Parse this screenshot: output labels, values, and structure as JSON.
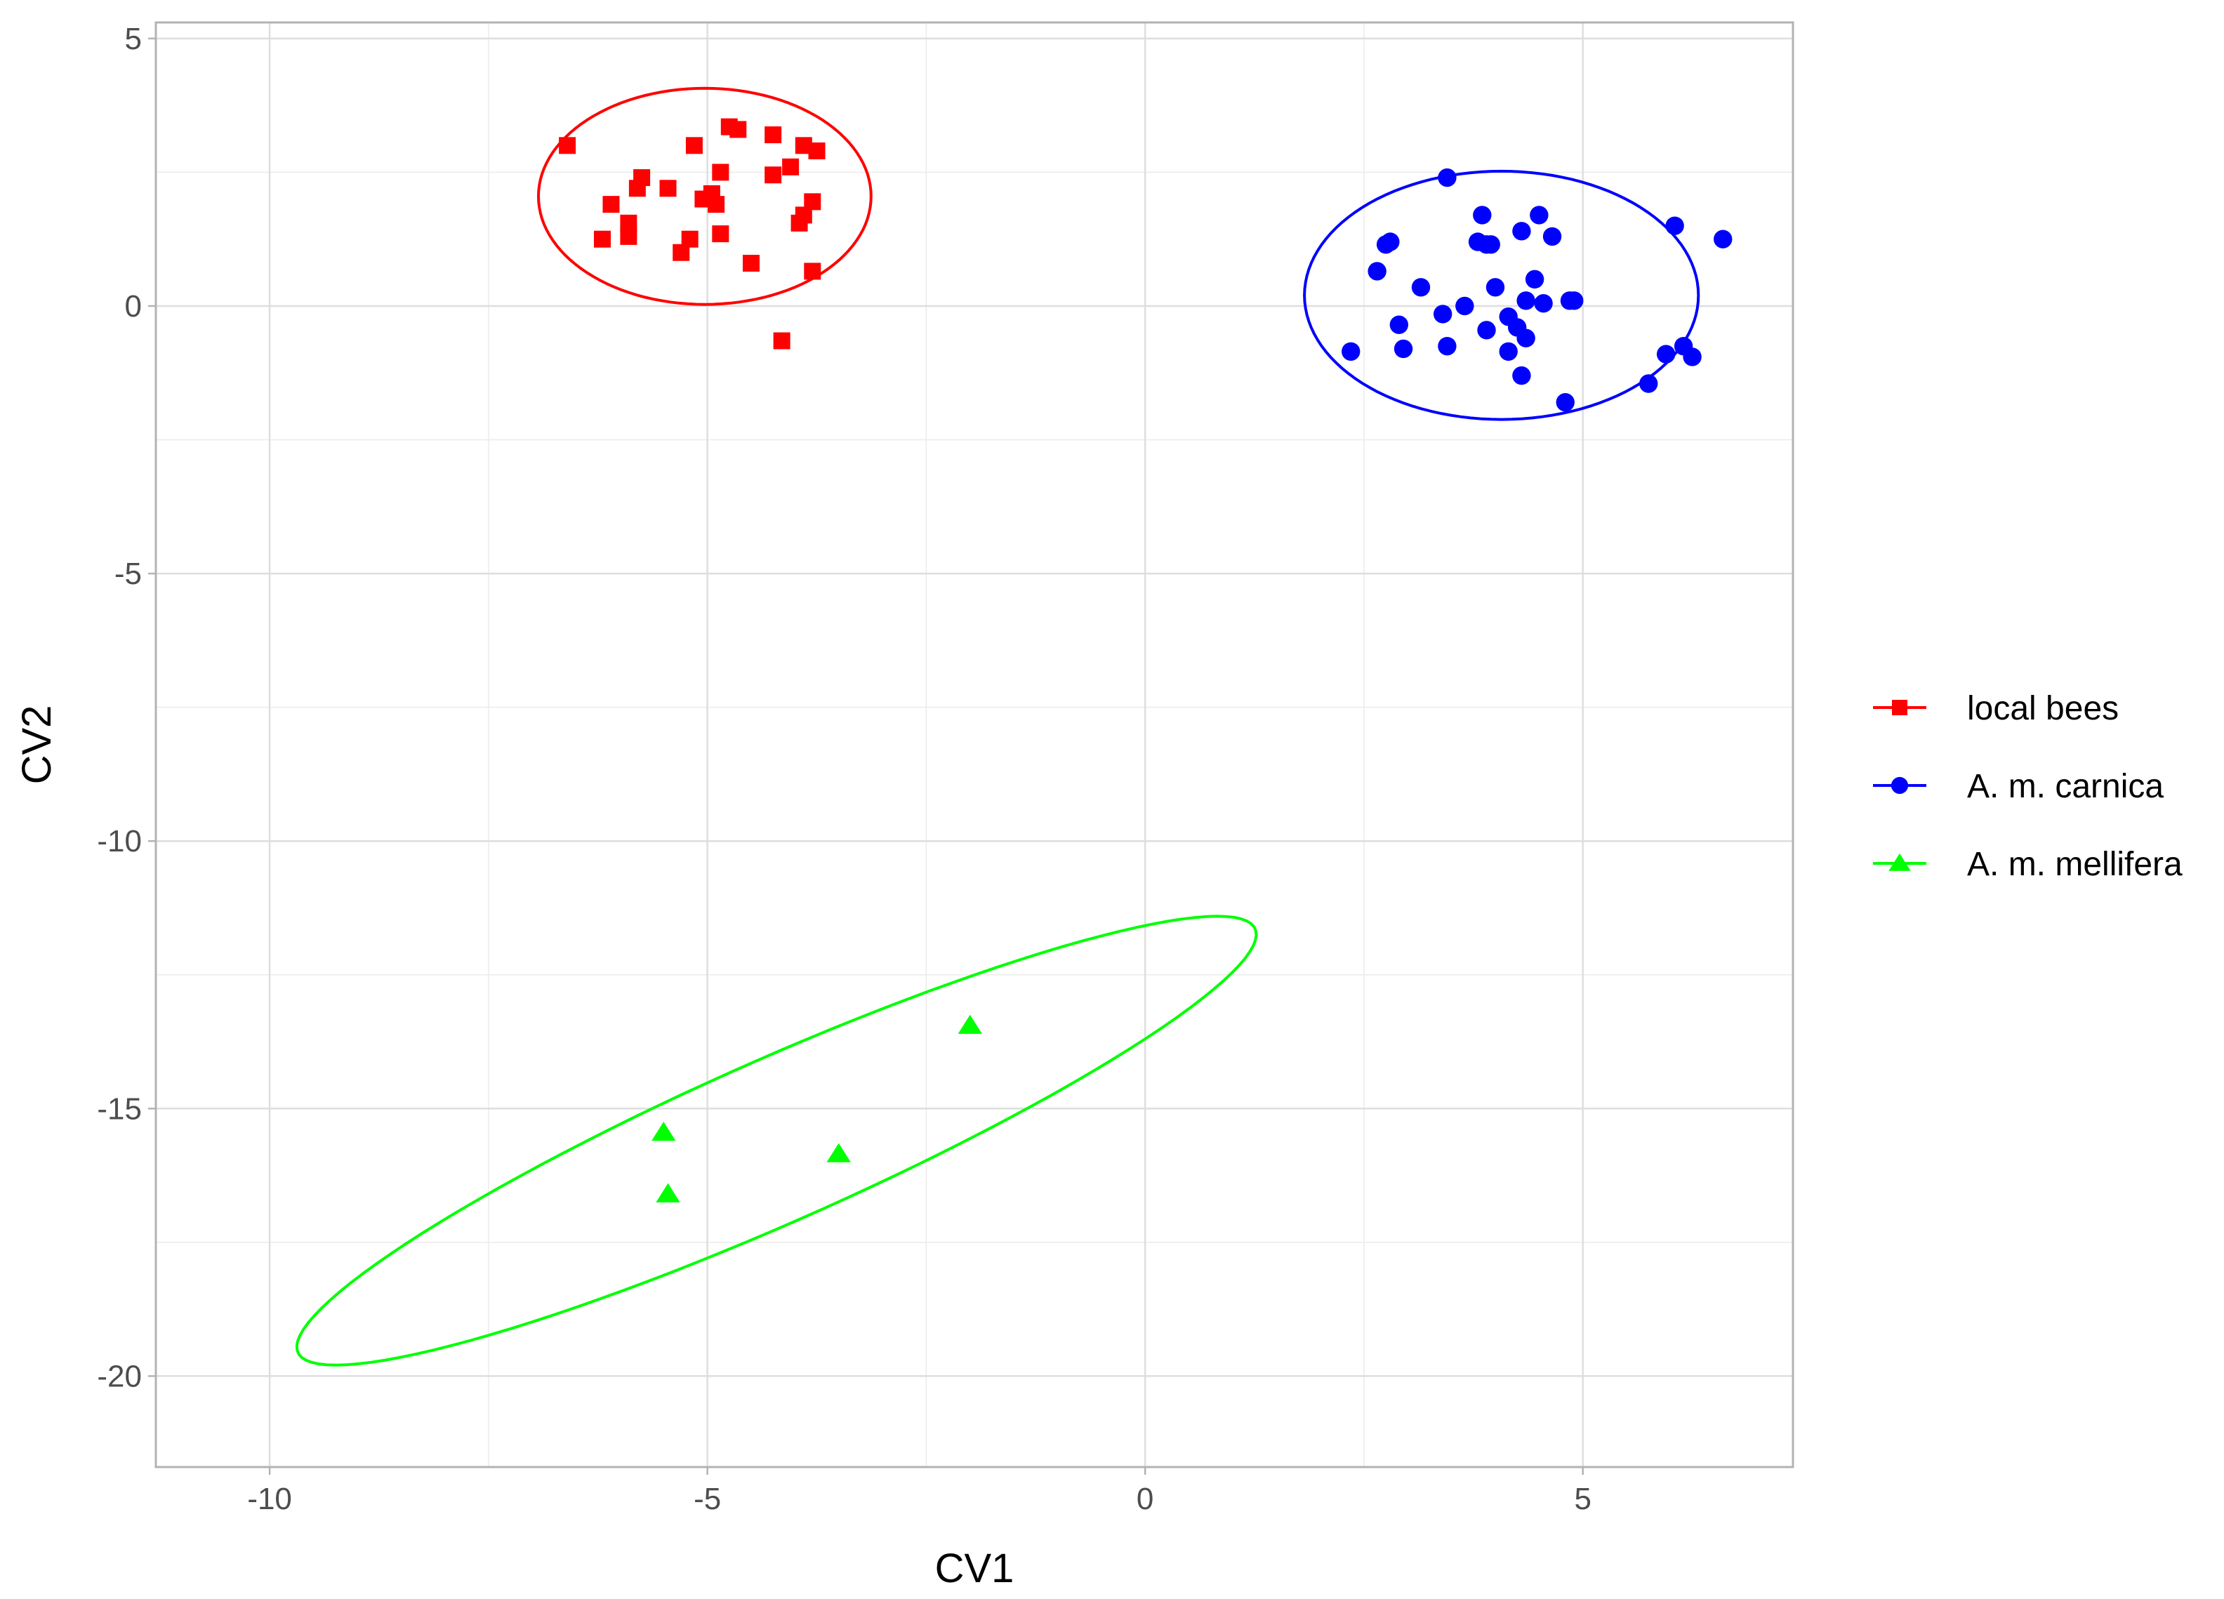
{
  "chart_data": {
    "type": "scatter",
    "xlabel": "CV1",
    "ylabel": "CV2",
    "xlim": [
      -11.3,
      7.4
    ],
    "ylim": [
      -21.7,
      5.3
    ],
    "x_ticks": [
      -10,
      -5,
      0,
      5
    ],
    "y_ticks": [
      5,
      0,
      -5,
      -10,
      -15,
      -20
    ],
    "grid": true,
    "legend_position": "right",
    "series": [
      {
        "name": "local bees",
        "color": "#ff0000",
        "marker": "square",
        "points": [
          [
            -6.6,
            3.0
          ],
          [
            -6.2,
            1.25
          ],
          [
            -6.1,
            1.9
          ],
          [
            -5.9,
            1.55
          ],
          [
            -5.9,
            1.3
          ],
          [
            -5.8,
            2.2
          ],
          [
            -5.75,
            2.4
          ],
          [
            -5.45,
            2.2
          ],
          [
            -5.3,
            1.0
          ],
          [
            -5.2,
            1.25
          ],
          [
            -5.15,
            3.0
          ],
          [
            -5.05,
            2.0
          ],
          [
            -4.95,
            2.1
          ],
          [
            -4.9,
            1.9
          ],
          [
            -4.85,
            2.5
          ],
          [
            -4.85,
            1.35
          ],
          [
            -4.75,
            3.35
          ],
          [
            -4.65,
            3.3
          ],
          [
            -4.5,
            0.8
          ],
          [
            -4.25,
            3.2
          ],
          [
            -4.25,
            2.45
          ],
          [
            -4.15,
            -0.65
          ],
          [
            -4.05,
            2.6
          ],
          [
            -3.95,
            1.55
          ],
          [
            -3.9,
            1.7
          ],
          [
            -3.9,
            3.0
          ],
          [
            -3.8,
            1.95
          ],
          [
            -3.8,
            0.65
          ],
          [
            -3.75,
            2.9
          ]
        ],
        "ellipse": {
          "cx": -5.03,
          "cy": 2.05,
          "rx": 1.9,
          "ry": 2.02,
          "angle": 0
        }
      },
      {
        "name": "A. m. carnica",
        "color": "#0000ff",
        "marker": "circle",
        "points": [
          [
            2.35,
            -0.85
          ],
          [
            2.65,
            0.65
          ],
          [
            2.75,
            1.15
          ],
          [
            2.8,
            1.2
          ],
          [
            2.9,
            -0.35
          ],
          [
            2.95,
            -0.8
          ],
          [
            3.15,
            0.35
          ],
          [
            3.4,
            -0.15
          ],
          [
            3.45,
            -0.75
          ],
          [
            3.45,
            2.4
          ],
          [
            3.65,
            0.0
          ],
          [
            3.8,
            1.2
          ],
          [
            3.85,
            1.7
          ],
          [
            3.9,
            1.15
          ],
          [
            3.95,
            1.15
          ],
          [
            3.9,
            -0.45
          ],
          [
            4.0,
            0.35
          ],
          [
            4.15,
            -0.2
          ],
          [
            4.15,
            -0.85
          ],
          [
            4.25,
            -0.4
          ],
          [
            4.3,
            1.4
          ],
          [
            4.3,
            -1.3
          ],
          [
            4.35,
            0.1
          ],
          [
            4.35,
            -0.6
          ],
          [
            4.45,
            0.5
          ],
          [
            4.5,
            1.7
          ],
          [
            4.55,
            0.05
          ],
          [
            4.65,
            1.3
          ],
          [
            4.8,
            -1.8
          ],
          [
            4.85,
            0.1
          ],
          [
            4.9,
            0.1
          ],
          [
            5.75,
            -1.45
          ],
          [
            5.95,
            -0.9
          ],
          [
            6.05,
            1.5
          ],
          [
            6.15,
            -0.75
          ],
          [
            6.25,
            -0.95
          ],
          [
            6.6,
            1.25
          ]
        ],
        "ellipse": {
          "cx": 4.07,
          "cy": 0.2,
          "rx": 2.25,
          "ry": 2.32,
          "angle": 0
        }
      },
      {
        "name": "A. m. mellifera",
        "color": "#00ff00",
        "marker": "triangle",
        "points": [
          [
            -5.5,
            -15.45
          ],
          [
            -5.45,
            -16.6
          ],
          [
            -3.5,
            -15.85
          ],
          [
            -2.0,
            -13.45
          ]
        ],
        "ellipse": {
          "cx": -4.21,
          "cy": -15.6,
          "rx": 6.77,
          "ry": 1.34,
          "angle": 36.8
        }
      }
    ]
  }
}
